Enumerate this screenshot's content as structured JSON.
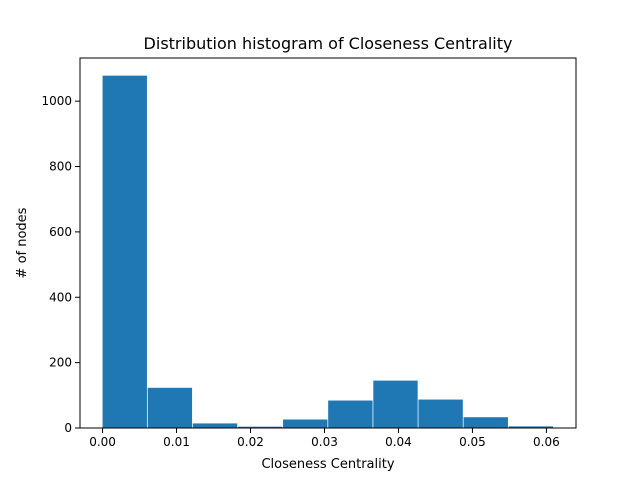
{
  "chart_data": {
    "type": "bar",
    "title": "Distribution histogram of Closeness Centrality",
    "xlabel": "Closeness Centrality",
    "ylabel": "# of nodes",
    "bins": [
      {
        "x0": 0.0,
        "x1": 0.006,
        "count": 1078
      },
      {
        "x0": 0.0061,
        "x1": 0.0121,
        "count": 123
      },
      {
        "x0": 0.0122,
        "x1": 0.0182,
        "count": 14
      },
      {
        "x0": 0.0183,
        "x1": 0.0243,
        "count": 4
      },
      {
        "x0": 0.0244,
        "x1": 0.0304,
        "count": 26
      },
      {
        "x0": 0.0305,
        "x1": 0.0365,
        "count": 84
      },
      {
        "x0": 0.0366,
        "x1": 0.0426,
        "count": 145
      },
      {
        "x0": 0.0427,
        "x1": 0.0487,
        "count": 87
      },
      {
        "x0": 0.0488,
        "x1": 0.0548,
        "count": 33
      },
      {
        "x0": 0.0549,
        "x1": 0.0609,
        "count": 5
      }
    ],
    "xlim": [
      -0.00305,
      0.064
    ],
    "ylim": [
      0,
      1132
    ],
    "xticks": [
      0.0,
      0.01,
      0.02,
      0.03,
      0.04,
      0.05,
      0.06
    ],
    "xtick_labels": [
      "0.00",
      "0.01",
      "0.02",
      "0.03",
      "0.04",
      "0.05",
      "0.06"
    ],
    "yticks": [
      0,
      200,
      400,
      600,
      800,
      1000
    ],
    "ytick_labels": [
      "0",
      "200",
      "400",
      "600",
      "800",
      "1000"
    ],
    "bar_color": "#1f77b4",
    "grid": false,
    "legend": "none"
  }
}
